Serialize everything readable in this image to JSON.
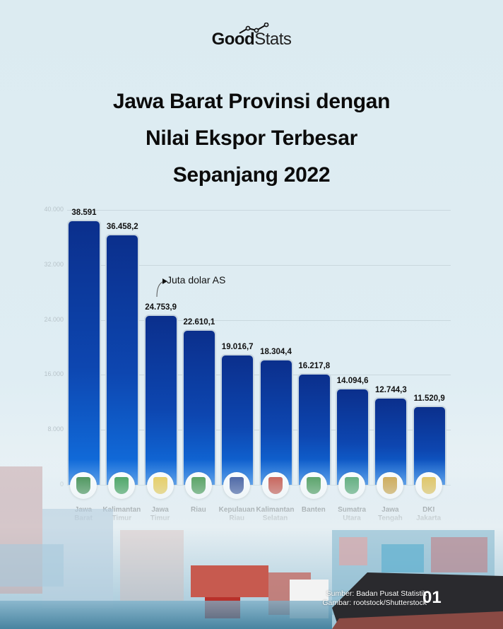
{
  "brand": {
    "logo_bold": "Good",
    "logo_light": "Stats"
  },
  "title": {
    "line1": "Jawa Barat Provinsi dengan",
    "line2": "Nilai Ekspor Terbesar",
    "line3": "Sepanjang 2022"
  },
  "unit_note": "Juta dolar AS",
  "y_ticks": [
    "40.000",
    "32.000",
    "24.000",
    "16.000",
    "8.000",
    "0"
  ],
  "bars": [
    {
      "label_line1": "Jawa",
      "label_line2": "Barat",
      "value_label": "38.591"
    },
    {
      "label_line1": "Kalimantan",
      "label_line2": "Timur",
      "value_label": "36.458,2"
    },
    {
      "label_line1": "Jawa",
      "label_line2": "Timur",
      "value_label": "24.753,9"
    },
    {
      "label_line1": "Riau",
      "label_line2": "",
      "value_label": "22.610,1"
    },
    {
      "label_line1": "Kepulauan",
      "label_line2": "Riau",
      "value_label": "19.016,7"
    },
    {
      "label_line1": "Kalimantan",
      "label_line2": "Selatan",
      "value_label": "18.304,4"
    },
    {
      "label_line1": "Banten",
      "label_line2": "",
      "value_label": "16.217,8"
    },
    {
      "label_line1": "Sumatra",
      "label_line2": "Utara",
      "value_label": "14.094,6"
    },
    {
      "label_line1": "Jawa",
      "label_line2": "Tengah",
      "value_label": "12.744,3"
    },
    {
      "label_line1": "DKI",
      "label_line2": "Jakarta",
      "value_label": "11.520,9"
    }
  ],
  "emblem_colors": [
    "#1f7a2e",
    "#1e8f3a",
    "#e8c43a",
    "#2c8a36",
    "#1d3b8c",
    "#c0392b",
    "#2e8b3d",
    "#3a9a5a",
    "#c8962a",
    "#e0b93a"
  ],
  "footer": {
    "source": "Sumber: Badan Pusat Statistik",
    "image_credit": "Gambar: rootstock/Shutterstock",
    "page": "01"
  },
  "colors": {
    "bar_top": "#0b2f8c",
    "bar_bottom": "#1173e3",
    "background": "#dcebf1"
  },
  "chart_data": {
    "type": "bar",
    "title": "Jawa Barat Provinsi dengan Nilai Ekspor Terbesar Sepanjang 2022",
    "categories": [
      "Jawa Barat",
      "Kalimantan Timur",
      "Jawa Timur",
      "Riau",
      "Kepulauan Riau",
      "Kalimantan Selatan",
      "Banten",
      "Sumatra Utara",
      "Jawa Tengah",
      "DKI Jakarta"
    ],
    "values": [
      38591,
      36458.2,
      24753.9,
      22610.1,
      19016.7,
      18304.4,
      16217.8,
      14094.6,
      12744.3,
      11520.9
    ],
    "xlabel": "",
    "ylabel": "Juta dolar AS",
    "ylim": [
      0,
      40000
    ],
    "yticks": [
      0,
      8000,
      16000,
      24000,
      32000,
      40000
    ],
    "grid": true,
    "legend": null,
    "source": "Badan Pusat Statistik"
  }
}
